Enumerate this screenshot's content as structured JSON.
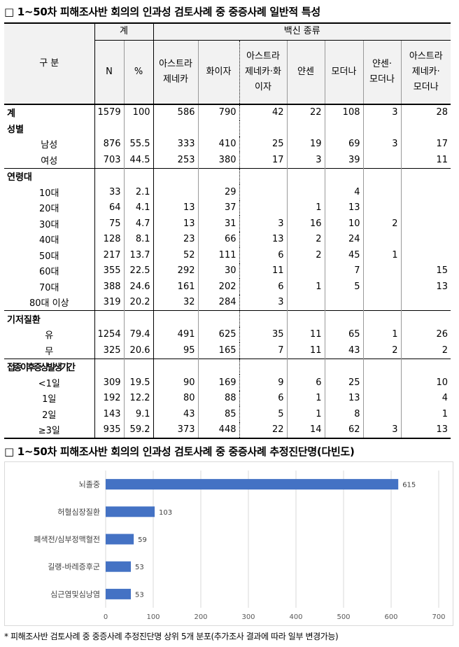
{
  "title1": "□ 1~50차 피해조사반 회의의 인과성 검토사례 중 중증사례 일반적 특성",
  "title2": "□ 1~50차 피해조사반 회의의 인과성 검토사례 중 중증사례 추정진단명(다빈도)",
  "note": "* 피해조사반 검토사례 중 중증사례 추정진단명 상위 5개 분포(추가조사 결과에 따라 일부 변경가능)",
  "table": {
    "header": {
      "category": "구 분",
      "total_group": "계",
      "vaccine_group": "백신 종류",
      "n": "N",
      "pct": "%",
      "az": [
        "아스트라",
        "제네카"
      ],
      "pfizer": "화이자",
      "az_pfizer": [
        "아스트라",
        "제네카·화",
        "이자"
      ],
      "janssen": "얀센",
      "moderna": "모더나",
      "janssen_moderna": [
        "얀센·",
        "모더나"
      ],
      "az_moderna": [
        "아스트라",
        "제네카·",
        "모더나"
      ]
    },
    "rows": [
      {
        "label": "계",
        "type": "section",
        "values": [
          "1579",
          "100",
          "586",
          "790",
          "42",
          "22",
          "108",
          "3",
          "28"
        ]
      },
      {
        "label": "성별",
        "type": "group",
        "values": [
          "",
          "",
          "",
          "",
          "",
          "",
          "",
          "",
          ""
        ]
      },
      {
        "label": "남성",
        "type": "sub",
        "values": [
          "876",
          "55.5",
          "333",
          "410",
          "25",
          "19",
          "69",
          "3",
          "17"
        ]
      },
      {
        "label": "여성",
        "type": "sub",
        "values": [
          "703",
          "44.5",
          "253",
          "380",
          "17",
          "3",
          "39",
          "",
          "11"
        ]
      },
      {
        "label": "연령대",
        "type": "groupline",
        "values": [
          "",
          "",
          "",
          "",
          "",
          "",
          "",
          "",
          ""
        ]
      },
      {
        "label": "10대",
        "type": "sub",
        "values": [
          "33",
          "2.1",
          "",
          "29",
          "",
          "",
          "4",
          "",
          ""
        ]
      },
      {
        "label": "20대",
        "type": "sub",
        "values": [
          "64",
          "4.1",
          "13",
          "37",
          "",
          "1",
          "13",
          "",
          ""
        ]
      },
      {
        "label": "30대",
        "type": "sub",
        "values": [
          "75",
          "4.7",
          "13",
          "31",
          "3",
          "16",
          "10",
          "2",
          ""
        ]
      },
      {
        "label": "40대",
        "type": "sub",
        "values": [
          "128",
          "8.1",
          "23",
          "66",
          "13",
          "2",
          "24",
          "",
          ""
        ]
      },
      {
        "label": "50대",
        "type": "sub",
        "values": [
          "217",
          "13.7",
          "52",
          "111",
          "6",
          "2",
          "45",
          "1",
          ""
        ]
      },
      {
        "label": "60대",
        "type": "sub",
        "values": [
          "355",
          "22.5",
          "292",
          "30",
          "11",
          "",
          "7",
          "",
          "15"
        ]
      },
      {
        "label": "70대",
        "type": "sub",
        "values": [
          "388",
          "24.6",
          "161",
          "202",
          "6",
          "1",
          "5",
          "",
          "13"
        ]
      },
      {
        "label": "80대 이상",
        "type": "sub",
        "values": [
          "319",
          "20.2",
          "32",
          "284",
          "3",
          "",
          "",
          "",
          ""
        ]
      },
      {
        "label": "기저질환",
        "type": "groupline",
        "values": [
          "",
          "",
          "",
          "",
          "",
          "",
          "",
          "",
          ""
        ]
      },
      {
        "label": "유",
        "type": "sub",
        "values": [
          "1254",
          "79.4",
          "491",
          "625",
          "35",
          "11",
          "65",
          "1",
          "26"
        ]
      },
      {
        "label": "무",
        "type": "sub",
        "values": [
          "325",
          "20.6",
          "95",
          "165",
          "7",
          "11",
          "43",
          "2",
          "2"
        ]
      },
      {
        "label": "접종이후증상발생기간",
        "type": "groupline",
        "values": [
          "",
          "",
          "",
          "",
          "",
          "",
          "",
          "",
          ""
        ]
      },
      {
        "label": "<1일",
        "type": "sub",
        "values": [
          "309",
          "19.5",
          "90",
          "169",
          "9",
          "6",
          "25",
          "",
          "10"
        ]
      },
      {
        "label": "1일",
        "type": "sub",
        "values": [
          "192",
          "12.2",
          "80",
          "88",
          "6",
          "1",
          "13",
          "",
          "4"
        ]
      },
      {
        "label": "2일",
        "type": "sub",
        "values": [
          "143",
          "9.1",
          "43",
          "85",
          "5",
          "1",
          "8",
          "",
          "1"
        ]
      },
      {
        "label": "≥3일",
        "type": "sub",
        "values": [
          "935",
          "59.2",
          "373",
          "448",
          "22",
          "14",
          "62",
          "3",
          "13"
        ]
      }
    ]
  },
  "chart_data": {
    "type": "bar",
    "orientation": "horizontal",
    "categories": [
      "뇌졸중",
      "허혈심장질환",
      "폐색전/심부정맥혈전",
      "길랭-바레증후군",
      "심근염및심낭염"
    ],
    "values": [
      615,
      103,
      59,
      53,
      53
    ],
    "xlim": [
      0,
      700
    ],
    "xticks": [
      0,
      100,
      200,
      300,
      400,
      500,
      600,
      700
    ],
    "bar_color": "#4472c4",
    "data_labels": true,
    "grid": true
  }
}
